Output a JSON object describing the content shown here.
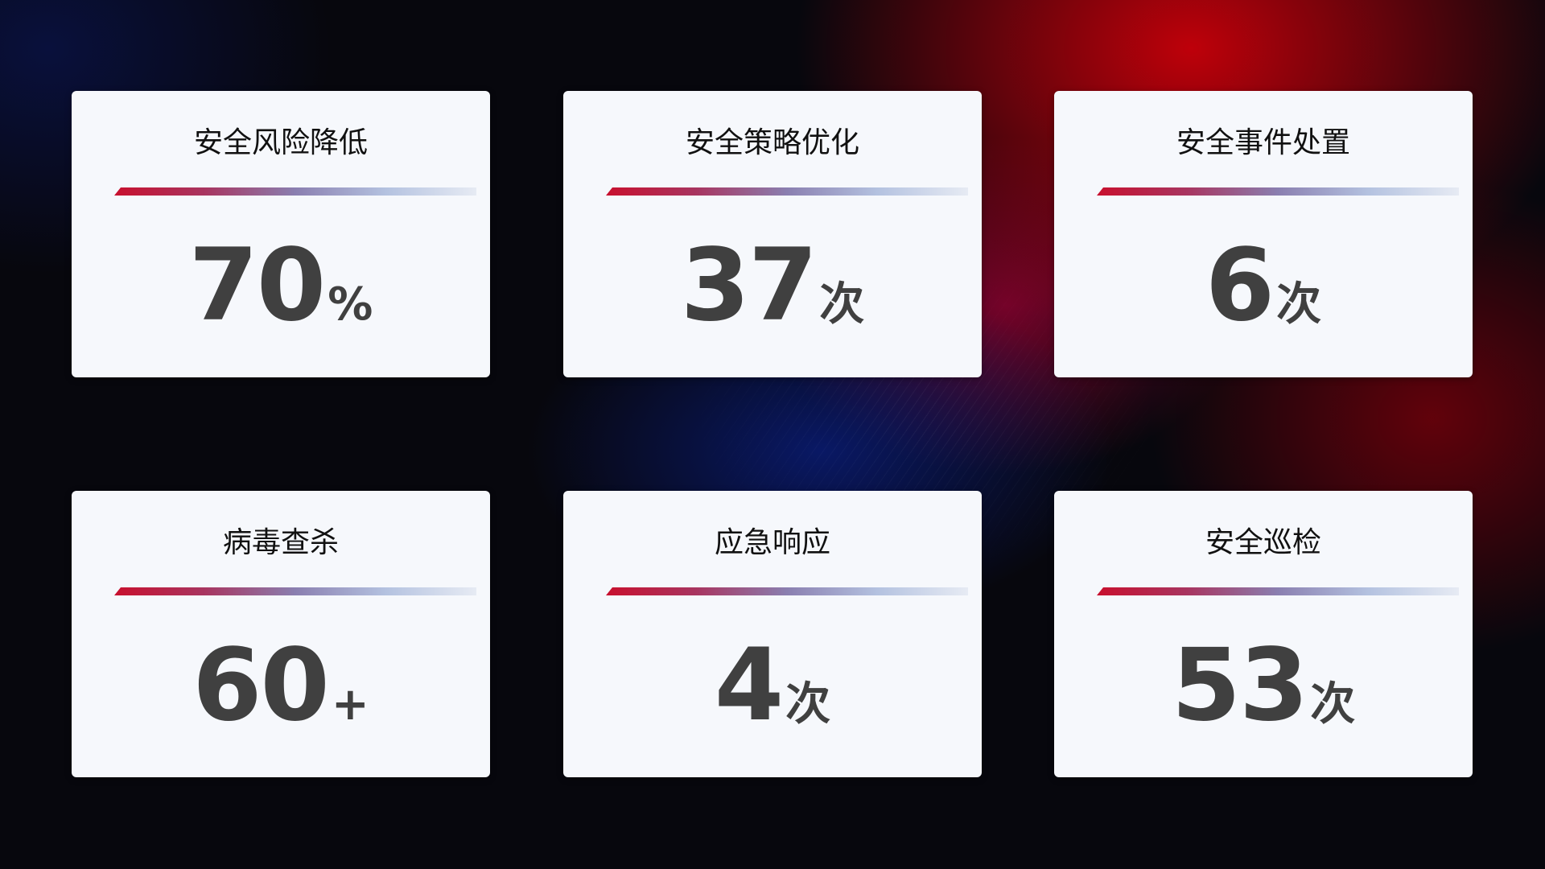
{
  "cards": [
    {
      "title": "安全风险降低",
      "value": "70",
      "unit": "%"
    },
    {
      "title": "安全策略优化",
      "value": "37",
      "unit": "次"
    },
    {
      "title": "安全事件处置",
      "value": "6",
      "unit": "次"
    },
    {
      "title": "病毒查杀",
      "value": "60",
      "unit": "+"
    },
    {
      "title": "应急响应",
      "value": "4",
      "unit": "次"
    },
    {
      "title": "安全巡检",
      "value": "53",
      "unit": "次"
    }
  ],
  "colors": {
    "accent_red": "#c8102e",
    "accent_blue": "#8a9fd0",
    "card_bg": "#f6f8fc",
    "value_text": "#404040"
  }
}
